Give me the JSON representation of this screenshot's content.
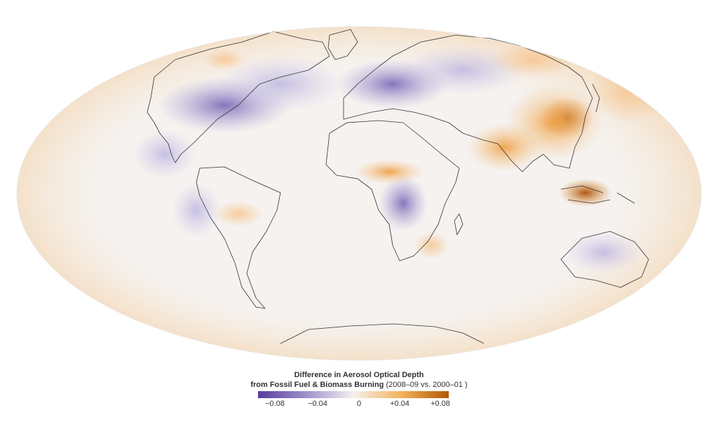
{
  "map": {
    "projection": "Mollweide",
    "variable": "aerosol optical depth difference",
    "colors": {
      "negative_max": "#5b3b9e",
      "negative_mid": "#9d8fcc",
      "neutral": "#f4f1ee",
      "positive_mid": "#f3b25a",
      "positive_max": "#b35806",
      "outline": "#333333",
      "outside": "#ffffff"
    }
  },
  "legend": {
    "title_line1": "Difference in Aerosol Optical Depth",
    "title_line2_bold": "from Fossil Fuel & Biomass Burning",
    "title_line2_normal": " (2008–09 vs. 2000–01 )",
    "ticks": [
      "−0.08",
      "−0.04",
      "0",
      "+0.04",
      "+0.08"
    ],
    "range": [
      -0.08,
      0.08
    ]
  }
}
